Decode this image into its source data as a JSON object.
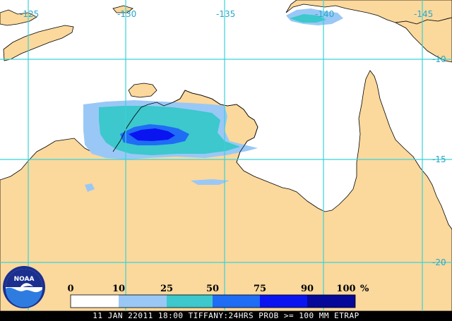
{
  "map": {
    "longitude_labels": [
      "-125",
      "-130",
      "-135",
      "-140",
      "-145"
    ],
    "latitude_labels": [
      "-10",
      "-15",
      "-20"
    ],
    "colors": {
      "land": "#fbd89c",
      "ocean": "#ffffff",
      "grid": "#39d3d8",
      "coast": "#000000"
    }
  },
  "legend": {
    "ticks": [
      "0",
      "10",
      "25",
      "50",
      "75",
      "90",
      "100"
    ],
    "unit": "%",
    "bins": [
      {
        "from": 0,
        "to": 10,
        "color": "#ffffff"
      },
      {
        "from": 10,
        "to": 25,
        "color": "#99c8f6"
      },
      {
        "from": 25,
        "to": 50,
        "color": "#3cc8cc"
      },
      {
        "from": 50,
        "to": 75,
        "color": "#1f6cf5"
      },
      {
        "from": 75,
        "to": 90,
        "color": "#0a14f0"
      },
      {
        "from": 90,
        "to": 100,
        "color": "#06089a"
      }
    ]
  },
  "logo": {
    "text": "NOAA",
    "icon": "noaa-logo"
  },
  "footer": {
    "caption": "11 JAN 22011 18:00 TIFFANY:24HRS PROB >= 100 MM ETRAP"
  }
}
